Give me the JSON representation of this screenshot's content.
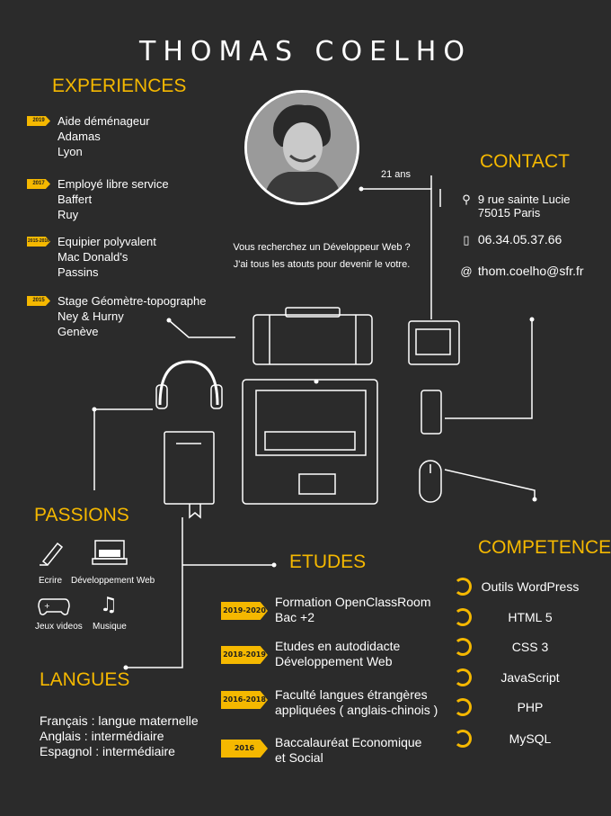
{
  "name": "THOMAS COELHO",
  "age": "21 ans",
  "tagline": [
    "Vous recherchez un Développeur Web ?",
    "J'ai tous les atouts pour devenir le votre."
  ],
  "experiences": {
    "heading": "EXPERIENCES",
    "items": [
      {
        "year": "2019",
        "lines": [
          "Aide déménageur",
          "Adamas",
          "Lyon"
        ]
      },
      {
        "year": "2017",
        "lines": [
          "Employé libre service",
          "Baffert",
          "Ruy"
        ]
      },
      {
        "year": "2015-2016",
        "lines": [
          "Equipier polyvalent",
          "Mac Donald's",
          "Passins"
        ]
      },
      {
        "year": "2015",
        "lines": [
          "Stage Géomètre-topographe",
          "Ney & Hurny",
          "Genève"
        ]
      }
    ]
  },
  "contact": {
    "heading": "CONTACT",
    "address": [
      "9 rue sainte Lucie",
      "75015 Paris"
    ],
    "phone": "06.34.05.37.66",
    "email_symbol": "@",
    "email": "thom.coelho@sfr.fr"
  },
  "passions": {
    "heading": "PASSIONS",
    "items": [
      "Ecrire",
      "Développement Web",
      "Jeux videos",
      "Musique"
    ]
  },
  "etudes": {
    "heading": "ETUDES",
    "items": [
      {
        "year": "2019-2020",
        "lines": [
          "Formation OpenClassRoom",
          "Bac +2"
        ]
      },
      {
        "year": "2018-2019",
        "lines": [
          "Etudes en autodidacte",
          "Développement Web"
        ]
      },
      {
        "year": "2016-2018",
        "lines": [
          "Faculté langues étrangères",
          "appliquées ( anglais-chinois )"
        ]
      },
      {
        "year": "2016",
        "lines": [
          "Baccalauréat Economique",
          "et Social"
        ]
      }
    ]
  },
  "competences": {
    "heading": "COMPETENCES",
    "items": [
      "Outils WordPress",
      "HTML 5",
      "CSS 3",
      "JavaScript",
      "PHP",
      "MySQL"
    ]
  },
  "langues": {
    "heading": "LANGUES",
    "items": [
      "Français : langue maternelle",
      "Anglais : intermédiaire",
      "Espagnol : intermédiaire"
    ]
  },
  "colors": {
    "accent": "#f5b800",
    "background": "#2b2b2b",
    "line": "#ffffff"
  }
}
